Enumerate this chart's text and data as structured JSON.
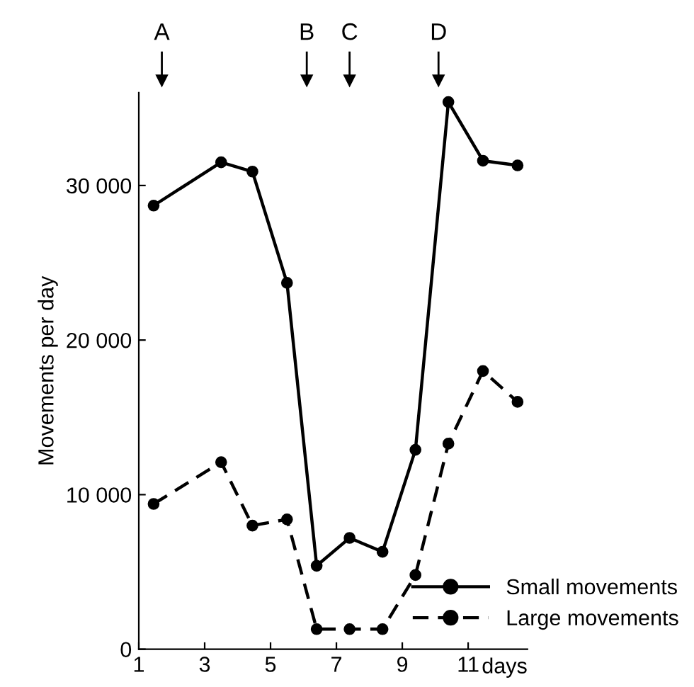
{
  "chart_data": {
    "type": "line",
    "ylabel": "Movements per day",
    "xlabel": "days",
    "xlim": [
      1,
      12.8
    ],
    "xticks": [
      1,
      3,
      5,
      7,
      9,
      11
    ],
    "ylim": [
      0,
      36000
    ],
    "yticks": [
      0,
      {
        "value": 10000,
        "label": "10 000"
      },
      {
        "value": 20000,
        "label": "20 000"
      },
      {
        "value": 30000,
        "label": "30 000"
      }
    ],
    "grid": false,
    "legend": "bottom right",
    "marker": "circle",
    "series": [
      {
        "name": "Small movements",
        "color": "#000000",
        "line_style": "solid",
        "x": [
          1.45,
          3.5,
          4.45,
          5.5,
          6.4,
          7.4,
          8.4,
          9.4,
          10.4,
          11.45,
          12.5
        ],
        "values": [
          28700,
          31500,
          30900,
          23700,
          5400,
          7200,
          6300,
          12900,
          35400,
          31600,
          31300
        ]
      },
      {
        "name": "Large movements",
        "color": "#000000",
        "line_style": "dashed",
        "x": [
          1.45,
          3.5,
          4.45,
          5.5,
          6.4,
          7.4,
          8.4,
          9.4,
          10.4,
          11.45,
          12.5
        ],
        "values": [
          9400,
          12100,
          8000,
          8400,
          1300,
          1300,
          1300,
          4800,
          13300,
          18000,
          16000
        ]
      }
    ],
    "ref_lines": [
      {
        "axis": "x",
        "value": 1.7,
        "label": "A"
      },
      {
        "axis": "x",
        "value": 6.1,
        "label": "B"
      },
      {
        "axis": "x",
        "value": 7.4,
        "label": "C"
      },
      {
        "axis": "x",
        "value": 10.1,
        "label": "D"
      }
    ]
  }
}
